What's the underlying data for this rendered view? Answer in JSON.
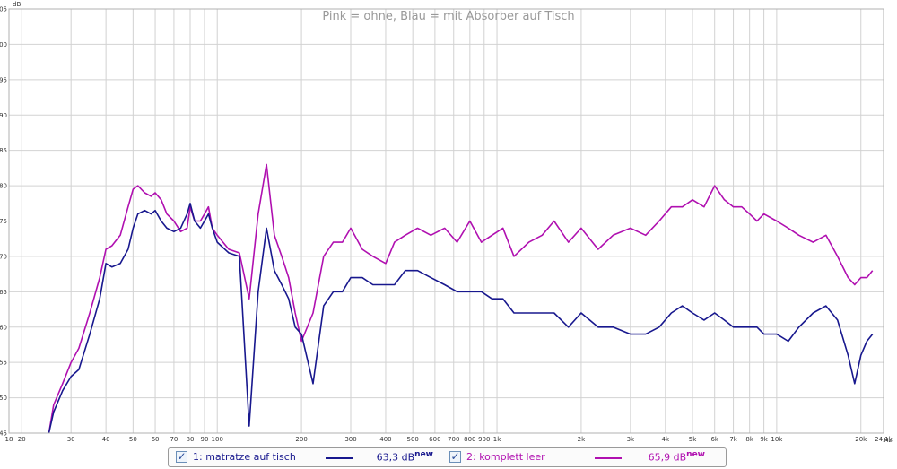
{
  "chart_data": {
    "type": "line",
    "title": "Pink = ohne, Blau = mit Absorber auf Tisch",
    "ylabel": "dB",
    "xlabel": "Hz",
    "x_scale": "log",
    "xlim": [
      18,
      24100
    ],
    "ylim": [
      45,
      105
    ],
    "grid": true,
    "y_ticks": [
      "45",
      "50",
      "55",
      "60",
      "65",
      "70",
      "75",
      "80",
      "85",
      "90",
      "95",
      "100",
      "105"
    ],
    "x_ticks": [
      {
        "value": 18,
        "label": "18"
      },
      {
        "value": 20,
        "label": "20"
      },
      {
        "value": 30,
        "label": "30"
      },
      {
        "value": 40,
        "label": "40"
      },
      {
        "value": 50,
        "label": "50"
      },
      {
        "value": 60,
        "label": "60"
      },
      {
        "value": 70,
        "label": "70"
      },
      {
        "value": 80,
        "label": "80"
      },
      {
        "value": 90,
        "label": "90"
      },
      {
        "value": 100,
        "label": "100"
      },
      {
        "value": 200,
        "label": "200"
      },
      {
        "value": 300,
        "label": "300"
      },
      {
        "value": 400,
        "label": "400"
      },
      {
        "value": 500,
        "label": "500"
      },
      {
        "value": 600,
        "label": "600"
      },
      {
        "value": 700,
        "label": "700"
      },
      {
        "value": 800,
        "label": "800"
      },
      {
        "value": 900,
        "label": "900"
      },
      {
        "value": 1000,
        "label": "1k"
      },
      {
        "value": 2000,
        "label": "2k"
      },
      {
        "value": 3000,
        "label": "3k"
      },
      {
        "value": 4000,
        "label": "4k"
      },
      {
        "value": 5000,
        "label": "5k"
      },
      {
        "value": 6000,
        "label": "6k"
      },
      {
        "value": 7000,
        "label": "7k"
      },
      {
        "value": 8000,
        "label": "8k"
      },
      {
        "value": 9000,
        "label": "9k"
      },
      {
        "value": 10000,
        "label": "10k"
      },
      {
        "value": 20000,
        "label": "20k"
      },
      {
        "value": 24100,
        "label": "24,1k"
      }
    ],
    "series": [
      {
        "name": "2: komplett leer",
        "color": "#b010b0",
        "x": [
          25,
          26,
          28,
          30,
          32,
          35,
          38,
          40,
          42,
          45,
          48,
          50,
          52,
          55,
          58,
          60,
          63,
          66,
          70,
          74,
          78,
          80,
          83,
          87,
          90,
          93,
          96,
          100,
          110,
          120,
          130,
          140,
          150,
          160,
          170,
          180,
          190,
          200,
          220,
          240,
          260,
          280,
          300,
          330,
          360,
          400,
          430,
          470,
          520,
          580,
          650,
          720,
          800,
          880,
          960,
          1050,
          1150,
          1300,
          1450,
          1600,
          1800,
          2000,
          2300,
          2600,
          3000,
          3400,
          3800,
          4200,
          4600,
          5000,
          5500,
          6000,
          6500,
          7000,
          7500,
          8000,
          8500,
          9000,
          10000,
          11000,
          12000,
          13500,
          15000,
          16500,
          18000,
          19000,
          20000,
          21000,
          22000
        ],
        "y": [
          45,
          49,
          52,
          55,
          57,
          62,
          67,
          71,
          71.5,
          73,
          77,
          79.5,
          80,
          79,
          78.5,
          79,
          78,
          76,
          75,
          73.5,
          74,
          77,
          75,
          75,
          76,
          77,
          74,
          73,
          71,
          70.5,
          64,
          76,
          83,
          73,
          70,
          67,
          62,
          58,
          62,
          70,
          72,
          72,
          74,
          71,
          70,
          69,
          72,
          73,
          74,
          73,
          74,
          72,
          75,
          72,
          73,
          74,
          70,
          72,
          73,
          75,
          72,
          74,
          71,
          73,
          74,
          73,
          75,
          77,
          77,
          78,
          77,
          80,
          78,
          77,
          77,
          76,
          75,
          76,
          75,
          74,
          73,
          72,
          73,
          70,
          67,
          66,
          67,
          67,
          68
        ]
      },
      {
        "name": "1: matratze auf tisch",
        "color": "#18188e",
        "x": [
          25,
          26,
          28,
          30,
          32,
          35,
          38,
          40,
          42,
          45,
          48,
          50,
          52,
          55,
          58,
          60,
          63,
          66,
          70,
          74,
          78,
          80,
          83,
          87,
          90,
          93,
          96,
          100,
          110,
          120,
          130,
          140,
          150,
          160,
          170,
          180,
          190,
          200,
          220,
          240,
          260,
          280,
          300,
          330,
          360,
          400,
          430,
          470,
          520,
          580,
          650,
          720,
          800,
          880,
          960,
          1050,
          1150,
          1300,
          1450,
          1600,
          1800,
          2000,
          2300,
          2600,
          3000,
          3400,
          3800,
          4200,
          4600,
          5000,
          5500,
          6000,
          6500,
          7000,
          7500,
          8000,
          8500,
          9000,
          10000,
          11000,
          12000,
          13500,
          15000,
          16500,
          18000,
          19000,
          20000,
          21000,
          22000
        ],
        "y": [
          45,
          48,
          51,
          53,
          54,
          59,
          64,
          69,
          68.5,
          69,
          71,
          74,
          76,
          76.5,
          76,
          76.5,
          75,
          74,
          73.5,
          74,
          76,
          77.5,
          75,
          74,
          75,
          76,
          74,
          72,
          70.5,
          70,
          46,
          65,
          74,
          68,
          66,
          64,
          60,
          59,
          52,
          63,
          65,
          65,
          67,
          67,
          66,
          66,
          66,
          68,
          68,
          67,
          66,
          65,
          65,
          65,
          64,
          64,
          62,
          62,
          62,
          62,
          60,
          62,
          60,
          60,
          59,
          59,
          60,
          62,
          63,
          62,
          61,
          62,
          61,
          60,
          60,
          60,
          60,
          59,
          59,
          58,
          60,
          62,
          63,
          61,
          56,
          52,
          56,
          58,
          59
        ]
      }
    ]
  },
  "legend": {
    "items": [
      {
        "label": "1: matratze auf tisch",
        "value": "63,3 dB",
        "badge": "new",
        "color": "#18188e",
        "check": "✓"
      },
      {
        "label": "2: komplett leer",
        "value": "65,9 dB",
        "badge": "new",
        "color": "#b010b0",
        "check": "✓"
      }
    ]
  }
}
